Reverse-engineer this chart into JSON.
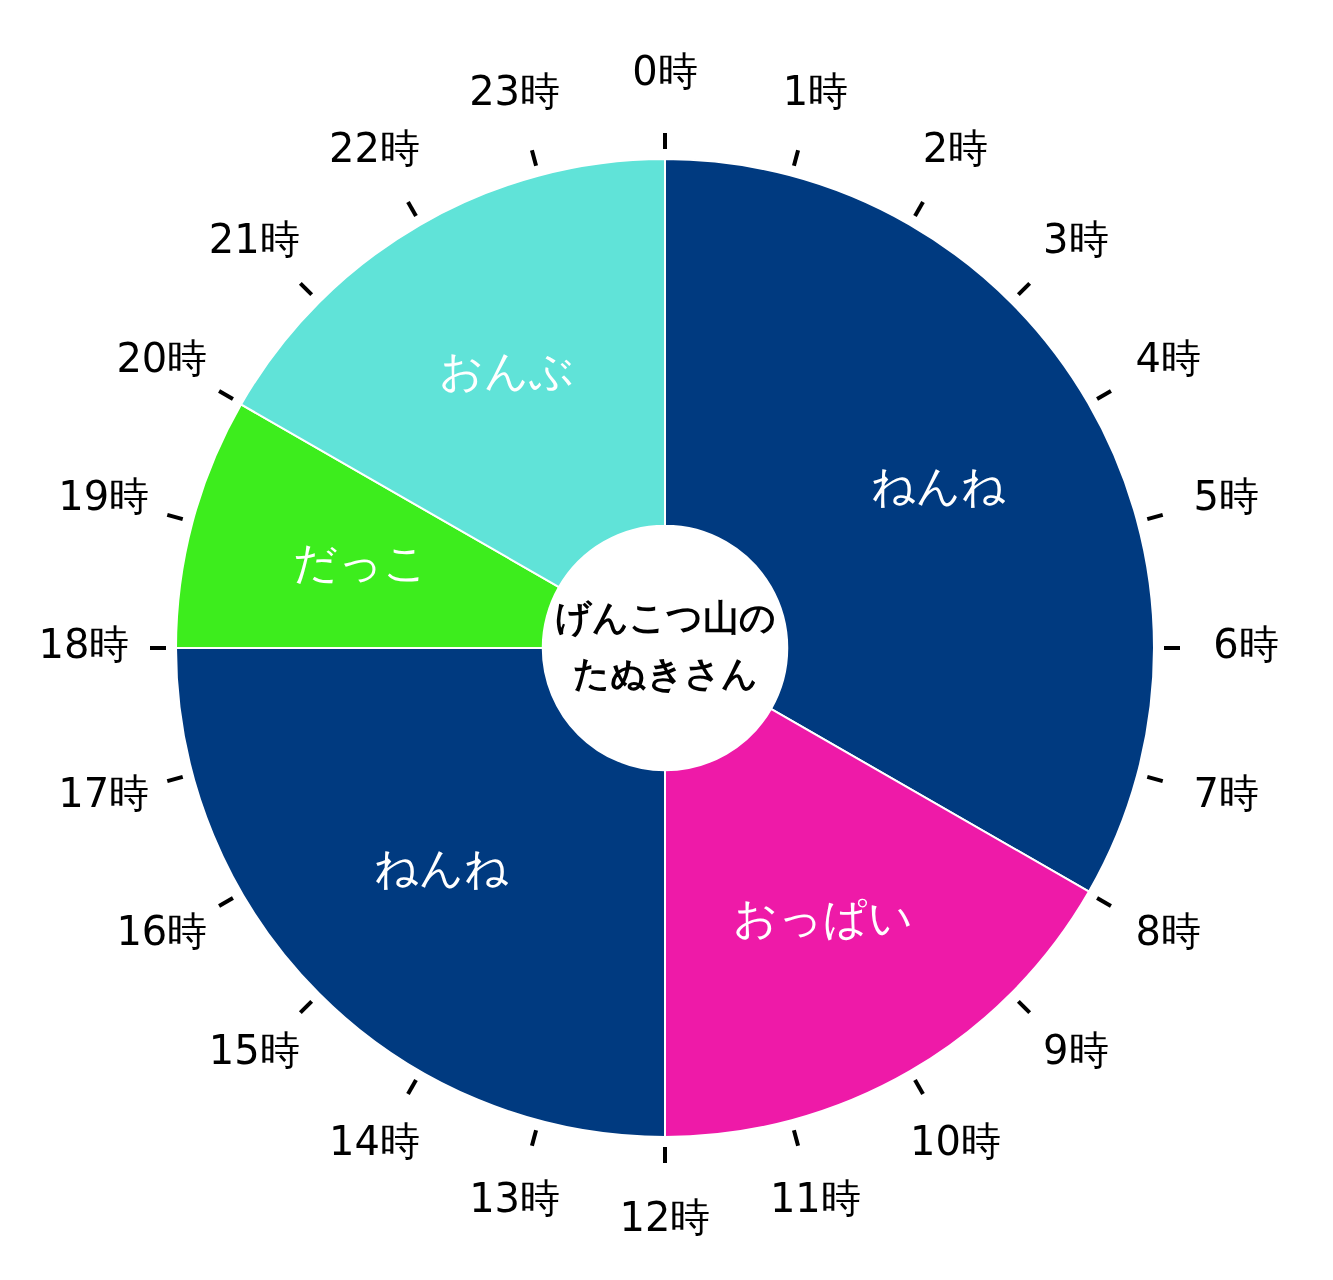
{
  "chart_data": {
    "type": "donut",
    "title": "げんこつ山のたぬきさん",
    "categories": [
      "ねんね",
      "おっぱい",
      "ねんね",
      "だっこ",
      "おんぶ"
    ],
    "values": [
      33.3,
      16.7,
      25,
      8.3,
      16.7
    ],
    "colors": [
      "#003a80",
      "#ee1aa8",
      "#003a80",
      "#3ded1d",
      "#60e3d8"
    ],
    "annotations": [
      "0時",
      "1時",
      "2時",
      "3時",
      "4時",
      "5時",
      "6時",
      "7時",
      "8時",
      "9時",
      "10時",
      "11時",
      "12時",
      "13時",
      "14時",
      "15時",
      "16時",
      "17時",
      "18時",
      "19時",
      "20時",
      "21時",
      "22時",
      "23時"
    ],
    "legend": false
  }
}
